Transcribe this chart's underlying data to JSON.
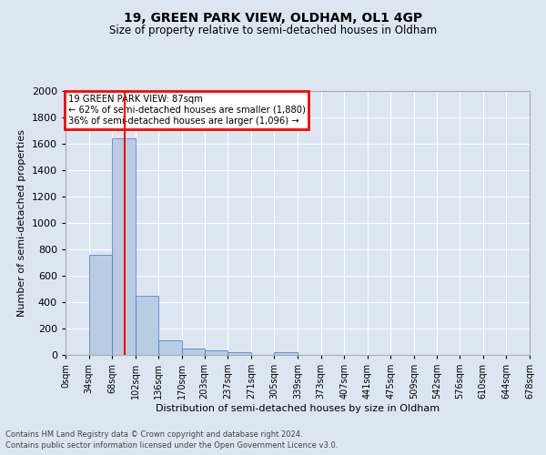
{
  "title": "19, GREEN PARK VIEW, OLDHAM, OL1 4GP",
  "subtitle": "Size of property relative to semi-detached houses in Oldham",
  "xlabel": "Distribution of semi-detached houses by size in Oldham",
  "ylabel": "Number of semi-detached properties",
  "footnote1": "Contains HM Land Registry data © Crown copyright and database right 2024.",
  "footnote2": "Contains public sector information licensed under the Open Government Licence v3.0.",
  "annotation_title": "19 GREEN PARK VIEW: 87sqm",
  "annotation_line2": "← 62% of semi-detached houses are smaller (1,880)",
  "annotation_line3": "36% of semi-detached houses are larger (1,096) →",
  "bar_color": "#b8cce4",
  "bar_edge_color": "#4472c4",
  "background_color": "#dce6f1",
  "plot_bg_color": "#dce6f1",
  "grid_color": "#ffffff",
  "red_line_x": 87,
  "annotation_box_color": "#ffffff",
  "annotation_box_edge": "#ff0000",
  "bin_edges": [
    0,
    34,
    68,
    102,
    136,
    170,
    203,
    237,
    271,
    305,
    339,
    373,
    407,
    441,
    475,
    509,
    542,
    576,
    610,
    644,
    678
  ],
  "bin_heights": [
    0,
    760,
    1638,
    450,
    113,
    45,
    32,
    22,
    0,
    19,
    0,
    0,
    0,
    0,
    0,
    0,
    0,
    0,
    0,
    0
  ],
  "ylim": [
    0,
    2000
  ],
  "yticks": [
    0,
    200,
    400,
    600,
    800,
    1000,
    1200,
    1400,
    1600,
    1800,
    2000
  ],
  "xtick_labels": [
    "0sqm",
    "34sqm",
    "68sqm",
    "102sqm",
    "136sqm",
    "170sqm",
    "203sqm",
    "237sqm",
    "271sqm",
    "305sqm",
    "339sqm",
    "373sqm",
    "407sqm",
    "441sqm",
    "475sqm",
    "509sqm",
    "542sqm",
    "576sqm",
    "610sqm",
    "644sqm",
    "678sqm"
  ]
}
